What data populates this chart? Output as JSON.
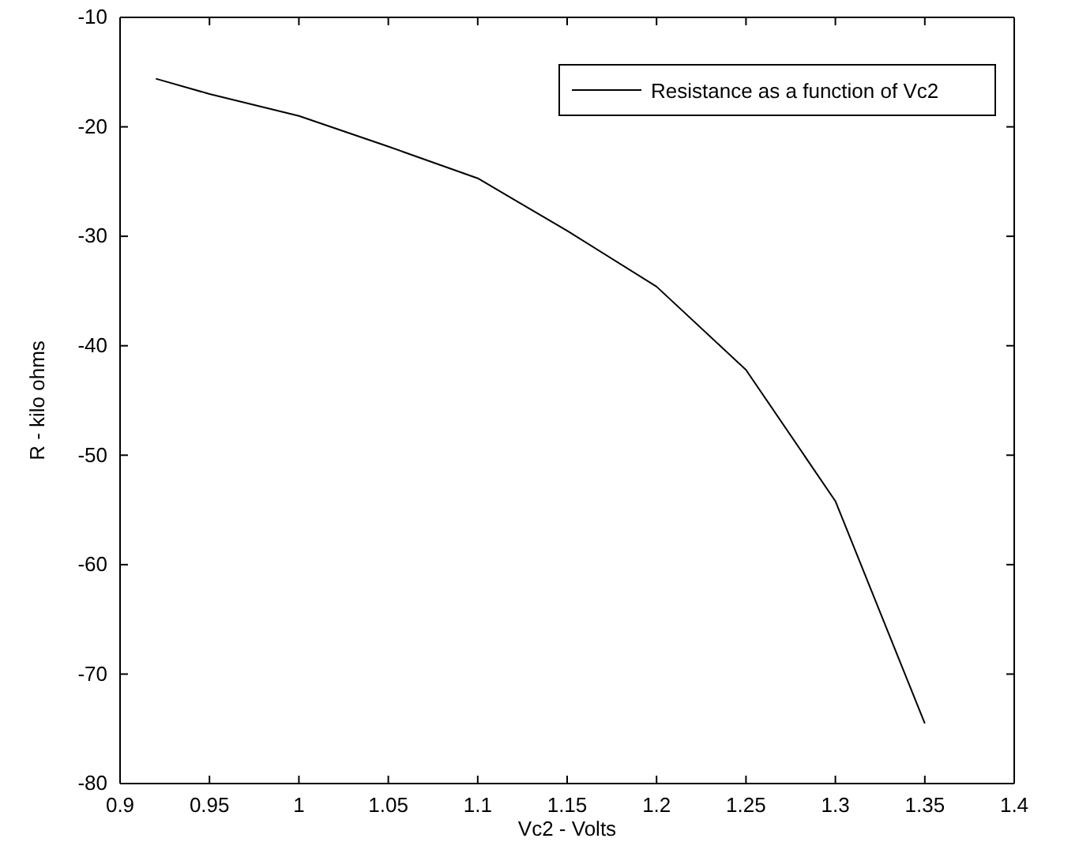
{
  "chart_data": {
    "type": "line",
    "xlabel": "Vc2 - Volts",
    "ylabel": "R - kilo ohms",
    "x": [
      0.92,
      0.95,
      1.0,
      1.05,
      1.1,
      1.15,
      1.2,
      1.25,
      1.3,
      1.35
    ],
    "series": [
      {
        "name": "Resistance as a function of Vc2",
        "color": "#000000",
        "values": [
          -15.6,
          -17,
          -19,
          -21.8,
          -24.7,
          -29.5,
          -34.6,
          -42.2,
          -54.2,
          -74.5
        ]
      }
    ],
    "xlim": [
      0.9,
      1.4
    ],
    "xticks": [
      0.9,
      0.95,
      1,
      1.05,
      1.1,
      1.15,
      1.2,
      1.25,
      1.3,
      1.35,
      1.4
    ],
    "ylim": [
      -80,
      -10
    ],
    "yticks": [
      -80,
      -70,
      -60,
      -50,
      -40,
      -30,
      -20,
      -10
    ],
    "legend": "top right",
    "grid": false,
    "marker": "none",
    "line_style": "solid"
  }
}
